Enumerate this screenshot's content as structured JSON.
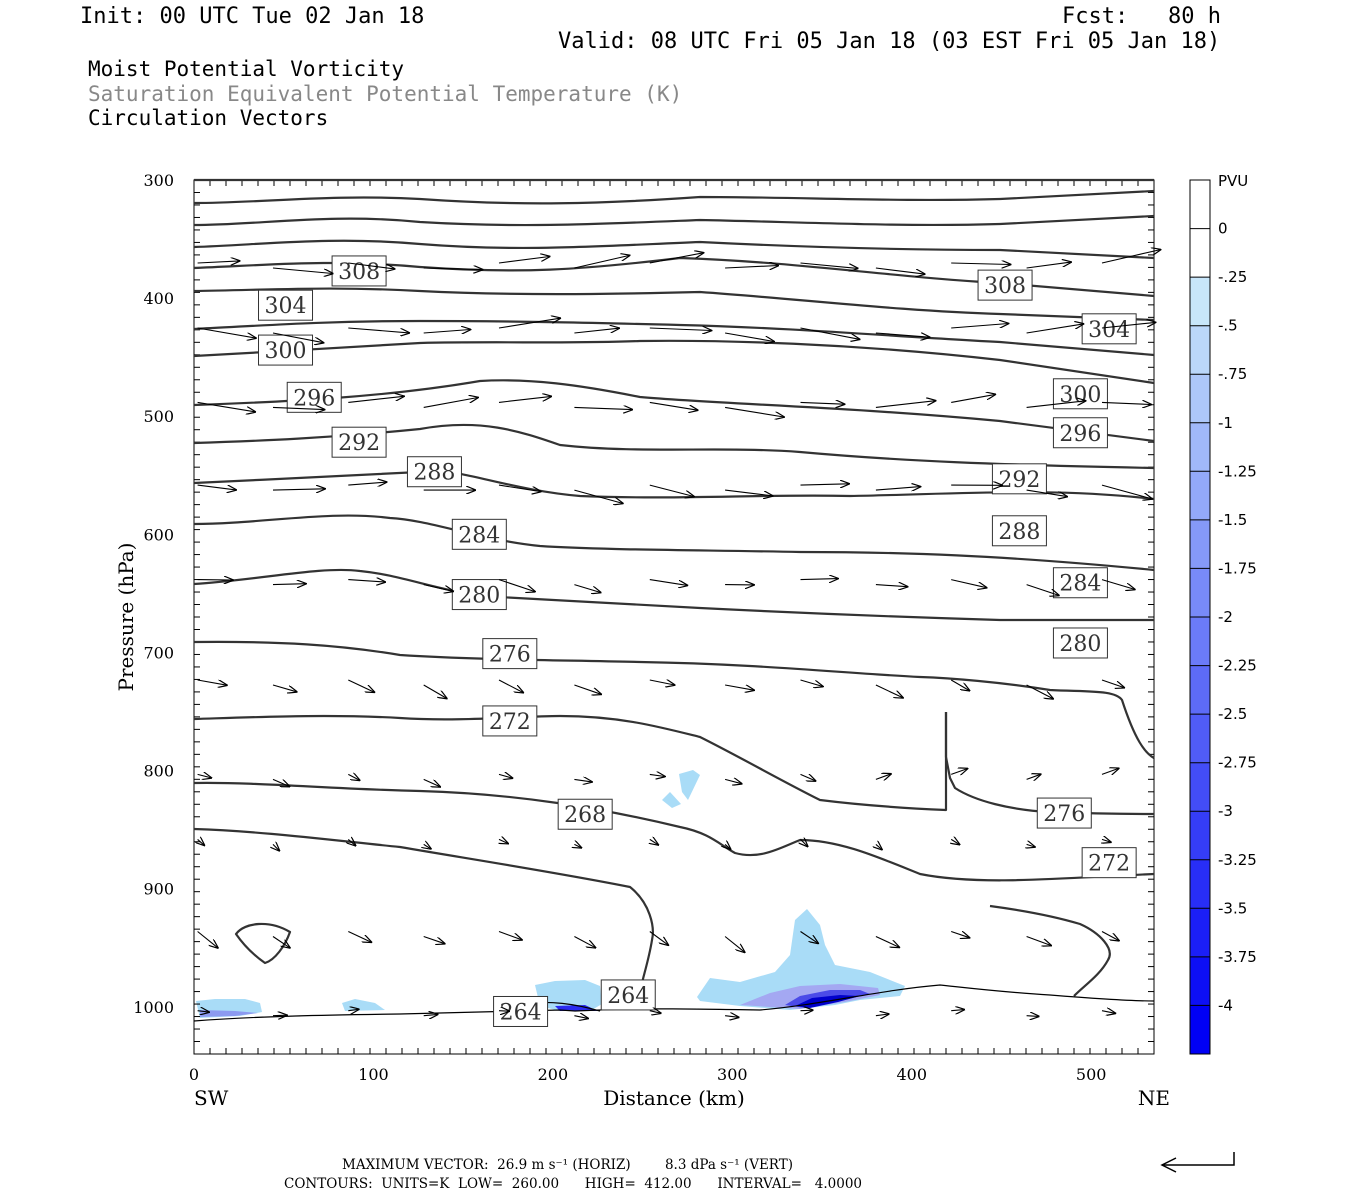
{
  "header": {
    "init": "Init: 00 UTC Tue 02 Jan 18",
    "fcst": "Fcst:   80 h",
    "valid": "Valid: 08 UTC Fri 05 Jan 18 (03 EST Fri 05 Jan 18)",
    "fields": [
      "Moist Potential Vorticity",
      "Saturation Equivalent Potential Temperature (K)",
      "Circulation Vectors"
    ]
  },
  "colors": {
    "contour": "#333333",
    "vector": "#000000",
    "pv_light": "#a9dcf7",
    "pv_mid": "#7f86f0",
    "pv_dark": "#0000cc"
  },
  "chart_data": {
    "type": "cross-section",
    "xlabel": "Distance (km)",
    "ylabel": "Pressure (hPa)",
    "xlim": [
      0,
      535
    ],
    "ylim": [
      1040,
      300
    ],
    "xticks": [
      0,
      100,
      200,
      300,
      400,
      500
    ],
    "yticks": [
      300,
      400,
      500,
      600,
      700,
      800,
      900,
      1000
    ],
    "x_end_labels": {
      "left": "SW",
      "right": "NE"
    },
    "colorbar": {
      "unit": "PVU",
      "levels": [
        "0",
        "-.25",
        "-.5",
        "-.75",
        "-1",
        "-1.25",
        "-1.5",
        "-1.75",
        "-2",
        "-2.25",
        "-2.5",
        "-2.75",
        "-3",
        "-3.25",
        "-3.5",
        "-3.75",
        "-4"
      ]
    },
    "contour_labels": [
      {
        "text": "308",
        "x": 92,
        "p": 377
      },
      {
        "text": "308",
        "x": 452,
        "p": 389
      },
      {
        "text": "304",
        "x": 51,
        "p": 406
      },
      {
        "text": "304",
        "x": 510,
        "p": 426
      },
      {
        "text": "300",
        "x": 51,
        "p": 444
      },
      {
        "text": "300",
        "x": 494,
        "p": 481
      },
      {
        "text": "296",
        "x": 67,
        "p": 484
      },
      {
        "text": "296",
        "x": 494,
        "p": 514
      },
      {
        "text": "292",
        "x": 92,
        "p": 522
      },
      {
        "text": "292",
        "x": 460,
        "p": 553
      },
      {
        "text": "288",
        "x": 134,
        "p": 547
      },
      {
        "text": "288",
        "x": 460,
        "p": 597
      },
      {
        "text": "284",
        "x": 159,
        "p": 600
      },
      {
        "text": "284",
        "x": 494,
        "p": 641
      },
      {
        "text": "280",
        "x": 159,
        "p": 651
      },
      {
        "text": "280",
        "x": 494,
        "p": 692
      },
      {
        "text": "276",
        "x": 176,
        "p": 701
      },
      {
        "text": "276",
        "x": 485,
        "p": 836
      },
      {
        "text": "272",
        "x": 176,
        "p": 758
      },
      {
        "text": "272",
        "x": 510,
        "p": 878
      },
      {
        "text": "268",
        "x": 218,
        "p": 837
      },
      {
        "text": "264",
        "x": 242,
        "p": 990
      },
      {
        "text": "264",
        "x": 182,
        "p": 1004
      }
    ],
    "maximum_vector": {
      "label": "MAXIMUM VECTOR:",
      "horiz": "26.9 m s⁻¹ (HORIZ)",
      "vert": "8.3 dPa s⁻¹ (VERT)"
    },
    "contours_info": {
      "label": "CONTOURS:",
      "units": "UNITS=K",
      "low": "LOW=  260.00",
      "high": "HIGH=  412.00",
      "interval": "INTERVAL=   4.0000"
    }
  }
}
